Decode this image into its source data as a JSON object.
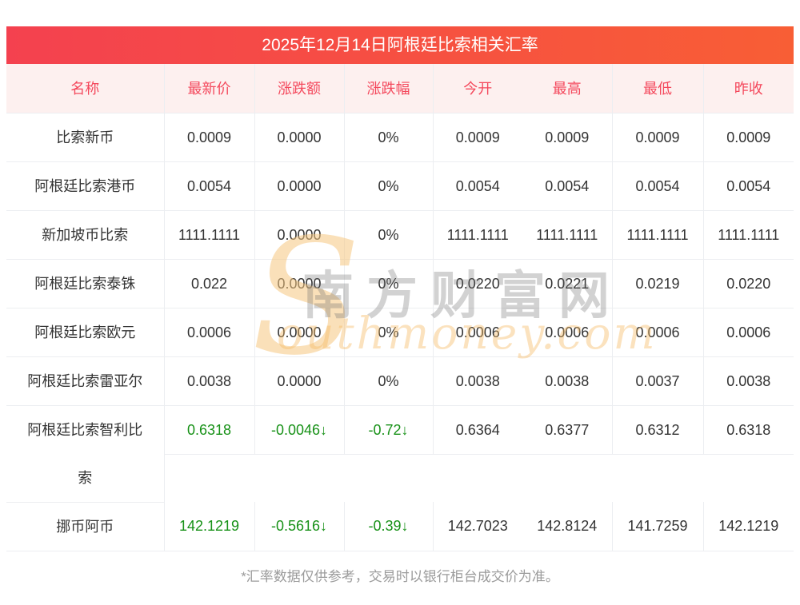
{
  "title": "2025年12月14日阿根廷比索相关汇率",
  "table": {
    "columns": [
      "名称",
      "最新价",
      "涨跌额",
      "涨跌幅",
      "今开",
      "最高",
      "最低",
      "昨收"
    ],
    "rows": [
      {
        "name": "比索新币",
        "latest": "0.0009",
        "change": "0.0000",
        "change_pct": "0%",
        "open": "0.0009",
        "high": "0.0009",
        "low": "0.0009",
        "prev_close": "0.0009",
        "trend": "flat",
        "tall": false
      },
      {
        "name": "阿根廷比索港币",
        "latest": "0.0054",
        "change": "0.0000",
        "change_pct": "0%",
        "open": "0.0054",
        "high": "0.0054",
        "low": "0.0054",
        "prev_close": "0.0054",
        "trend": "flat",
        "tall": false
      },
      {
        "name": "新加坡币比索",
        "latest": "1111.1111",
        "change": "0.0000",
        "change_pct": "0%",
        "open": "1111.1111",
        "high": "1111.1111",
        "low": "1111.1111",
        "prev_close": "1111.1111",
        "trend": "flat",
        "tall": false
      },
      {
        "name": "阿根廷比索泰铢",
        "latest": "0.022",
        "change": "0.0000",
        "change_pct": "0%",
        "open": "0.0220",
        "high": "0.0221",
        "low": "0.0219",
        "prev_close": "0.0220",
        "trend": "flat",
        "tall": false
      },
      {
        "name": "阿根廷比索欧元",
        "latest": "0.0006",
        "change": "0.0000",
        "change_pct": "0%",
        "open": "0.0006",
        "high": "0.0006",
        "low": "0.0006",
        "prev_close": "0.0006",
        "trend": "flat",
        "tall": false
      },
      {
        "name": "阿根廷比索雷亚尔",
        "latest": "0.0038",
        "change": "0.0000",
        "change_pct": "0%",
        "open": "0.0038",
        "high": "0.0038",
        "low": "0.0037",
        "prev_close": "0.0038",
        "trend": "flat",
        "tall": false
      },
      {
        "name": "阿根廷比索智利比索",
        "latest": "0.6318",
        "change": "-0.0046↓",
        "change_pct": "-0.72↓",
        "open": "0.6364",
        "high": "0.6377",
        "low": "0.6312",
        "prev_close": "0.6318",
        "trend": "down",
        "tall": true
      },
      {
        "name": "挪币阿币",
        "latest": "142.1219",
        "change": "-0.5616↓",
        "change_pct": "-0.39↓",
        "open": "142.7023",
        "high": "142.8124",
        "low": "141.7259",
        "prev_close": "142.1219",
        "trend": "down",
        "tall": false
      }
    ]
  },
  "watermark": {
    "s_letter": "S",
    "cn_text": "南方财富网",
    "en_text": "outhmoney.com"
  },
  "footer": "*汇率数据仅供参考，交易时以银行柜台成交价为准。",
  "colors": {
    "title_gradient_start": "#f4414f",
    "title_gradient_end": "#f85e35",
    "header_bg": "#fdf0ef",
    "header_text": "#f4485c",
    "down_green": "#179117",
    "border_color": "#eceef1",
    "body_text": "#333333",
    "footer_text": "#9b9b9b"
  }
}
